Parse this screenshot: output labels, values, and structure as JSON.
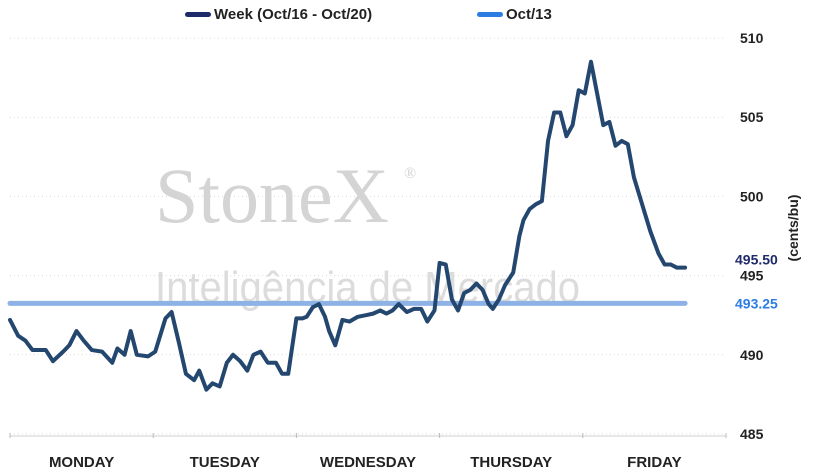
{
  "legend": [
    {
      "label": "Week (Oct/16 - Oct/20)",
      "color": "#1f2a6b"
    },
    {
      "label": "Oct/13",
      "color": "#2b7de1"
    }
  ],
  "watermark": {
    "brand": "StoneX",
    "registered": "®",
    "subtitle": "Inteligência de Mercado"
  },
  "chart_data": {
    "type": "line",
    "ylabel": "(cents/bu)",
    "ylim": [
      485,
      510
    ],
    "yticks": [
      485,
      490,
      495,
      500,
      505,
      510
    ],
    "days": [
      "MONDAY",
      "TUESDAY",
      "WEDNESDAY",
      "THURSDAY",
      "FRIDAY"
    ],
    "grid": true,
    "series": [
      {
        "name": "Week (Oct/16 - Oct/20)",
        "color": "#24476f",
        "last_value_label": "495.50",
        "last_value_color": "#1f2a6b",
        "values": [
          [
            0.0,
            492.2
          ],
          [
            0.08,
            491.2
          ],
          [
            0.15,
            490.9
          ],
          [
            0.22,
            490.3
          ],
          [
            0.35,
            490.3
          ],
          [
            0.42,
            489.6
          ],
          [
            0.52,
            490.2
          ],
          [
            0.58,
            490.6
          ],
          [
            0.65,
            491.5
          ],
          [
            0.72,
            490.9
          ],
          [
            0.8,
            490.3
          ],
          [
            0.9,
            490.2
          ],
          [
            1.0,
            489.5
          ],
          [
            1.05,
            490.4
          ],
          [
            1.12,
            490.0
          ],
          [
            1.18,
            491.5
          ],
          [
            1.24,
            490.0
          ],
          [
            1.35,
            489.9
          ],
          [
            1.42,
            490.2
          ],
          [
            1.52,
            492.3
          ],
          [
            1.58,
            492.7
          ],
          [
            1.65,
            490.8
          ],
          [
            1.72,
            488.8
          ],
          [
            1.8,
            488.4
          ],
          [
            1.85,
            489.0
          ],
          [
            1.92,
            487.8
          ],
          [
            1.98,
            488.2
          ],
          [
            2.05,
            488.0
          ],
          [
            2.12,
            489.5
          ],
          [
            2.18,
            490.0
          ],
          [
            2.25,
            489.6
          ],
          [
            2.32,
            489.0
          ],
          [
            2.38,
            490.0
          ],
          [
            2.45,
            490.2
          ],
          [
            2.52,
            489.5
          ],
          [
            2.6,
            489.5
          ],
          [
            2.66,
            488.8
          ],
          [
            2.72,
            488.8
          ],
          [
            2.8,
            492.3
          ],
          [
            2.86,
            492.3
          ],
          [
            2.9,
            492.4
          ],
          [
            2.96,
            493.0
          ],
          [
            3.02,
            493.2
          ],
          [
            3.08,
            492.4
          ],
          [
            3.12,
            491.5
          ],
          [
            3.18,
            490.6
          ],
          [
            3.25,
            492.2
          ],
          [
            3.32,
            492.1
          ],
          [
            3.4,
            492.4
          ],
          [
            3.48,
            492.5
          ],
          [
            3.55,
            492.6
          ],
          [
            3.62,
            492.8
          ],
          [
            3.68,
            492.6
          ],
          [
            3.74,
            492.8
          ],
          [
            3.8,
            493.2
          ],
          [
            3.88,
            492.7
          ],
          [
            3.95,
            492.9
          ],
          [
            4.02,
            492.9
          ],
          [
            4.08,
            492.1
          ],
          [
            4.15,
            492.8
          ],
          [
            4.2,
            495.8
          ],
          [
            4.26,
            495.7
          ],
          [
            4.32,
            493.5
          ],
          [
            4.38,
            492.8
          ],
          [
            4.44,
            493.9
          ],
          [
            4.5,
            494.1
          ],
          [
            4.56,
            494.5
          ],
          [
            4.62,
            494.1
          ],
          [
            4.68,
            493.2
          ],
          [
            4.72,
            492.9
          ],
          [
            4.78,
            493.5
          ],
          [
            4.84,
            494.4
          ],
          [
            4.92,
            495.2
          ],
          [
            4.98,
            497.5
          ],
          [
            5.02,
            498.5
          ],
          [
            5.08,
            499.2
          ],
          [
            5.14,
            499.5
          ],
          [
            5.2,
            499.7
          ],
          [
            5.26,
            503.5
          ],
          [
            5.32,
            505.3
          ],
          [
            5.38,
            505.3
          ],
          [
            5.44,
            503.8
          ],
          [
            5.5,
            504.5
          ],
          [
            5.56,
            506.7
          ],
          [
            5.62,
            506.5
          ],
          [
            5.68,
            508.5
          ],
          [
            5.74,
            506.5
          ],
          [
            5.8,
            504.5
          ],
          [
            5.86,
            504.7
          ],
          [
            5.92,
            503.2
          ],
          [
            5.98,
            503.5
          ],
          [
            6.04,
            503.3
          ],
          [
            6.1,
            501.2
          ],
          [
            6.18,
            499.5
          ],
          [
            6.26,
            497.8
          ],
          [
            6.34,
            496.4
          ],
          [
            6.4,
            495.7
          ],
          [
            6.46,
            495.7
          ],
          [
            6.52,
            495.5
          ],
          [
            6.6,
            495.5
          ]
        ]
      },
      {
        "name": "Oct/13",
        "color": "#8fb2e6",
        "last_value_label": "493.25",
        "last_value_color": "#2b7de1",
        "values": [
          [
            0.0,
            493.25
          ],
          [
            6.6,
            493.25
          ]
        ]
      }
    ]
  }
}
